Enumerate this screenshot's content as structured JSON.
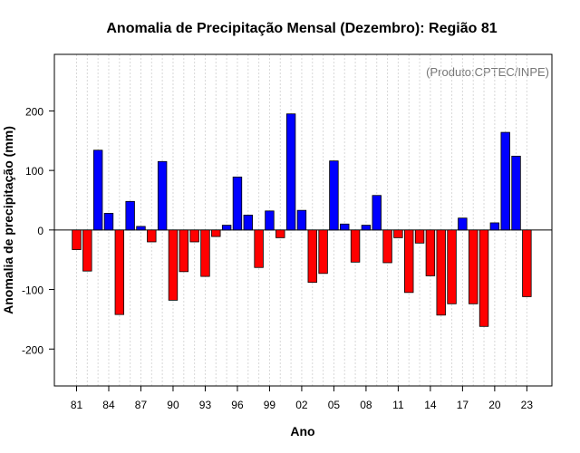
{
  "chart_data": {
    "type": "bar",
    "title": "Anomalia de Precipitação Mensal (Dezembro): Região 81",
    "xlabel": "Ano",
    "ylabel": "Anomalia de precipitação (mm)",
    "annotation": "(Produto:CPTEC/INPE)",
    "ylim": [
      -262,
      295
    ],
    "yticks": [
      -200,
      -100,
      0,
      100,
      200
    ],
    "x": [
      1981,
      1982,
      1983,
      1984,
      1985,
      1986,
      1987,
      1988,
      1989,
      1990,
      1991,
      1992,
      1993,
      1994,
      1995,
      1996,
      1997,
      1998,
      1999,
      2000,
      2001,
      2002,
      2003,
      2004,
      2005,
      2006,
      2007,
      2008,
      2009,
      2010,
      2011,
      2012,
      2013,
      2014,
      2015,
      2016,
      2017,
      2018,
      2019,
      2020,
      2021,
      2022,
      2023
    ],
    "values": [
      -33,
      -69,
      134,
      28,
      -142,
      48,
      6,
      -20,
      115,
      -118,
      -70,
      -20,
      -78,
      -11,
      8,
      89,
      25,
      -63,
      32,
      -13,
      195,
      33,
      -88,
      -73,
      116,
      10,
      -54,
      8,
      58,
      -55,
      -13,
      -105,
      -22,
      -77,
      -143,
      -124,
      20,
      -124,
      -162,
      12,
      164,
      124,
      -112
    ],
    "xtick_labels": [
      "81",
      "84",
      "87",
      "90",
      "93",
      "96",
      "99",
      "02",
      "05",
      "08",
      "11",
      "14",
      "17",
      "20",
      "23"
    ],
    "xtick_years": [
      1981,
      1984,
      1987,
      1990,
      1993,
      1996,
      1999,
      2002,
      2005,
      2008,
      2011,
      2014,
      2017,
      2020,
      2023
    ],
    "colors": {
      "positive": "#0000ff",
      "negative": "#ff0000",
      "grid": "#d8d8d8"
    },
    "grid": true
  }
}
